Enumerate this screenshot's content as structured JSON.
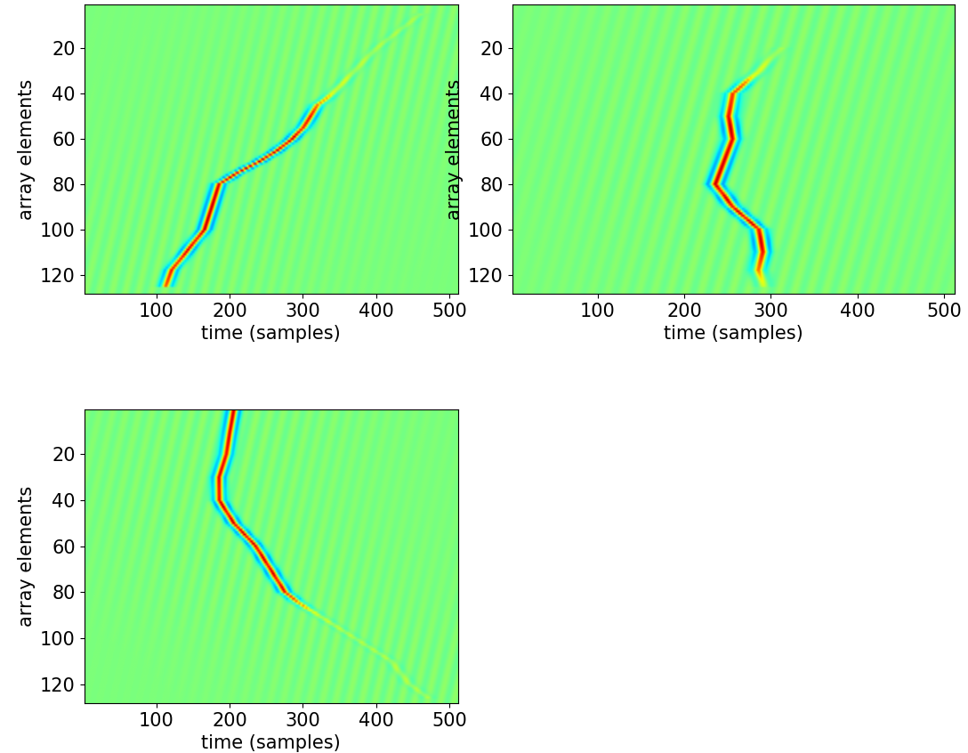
{
  "chart_data": [
    {
      "type": "image",
      "xlabel": "time (samples)",
      "ylabel": "array elements",
      "xlim": [
        1,
        512
      ],
      "ylim": [
        128,
        1
      ],
      "xticks": [
        100,
        200,
        300,
        400,
        500
      ],
      "yticks": [
        20,
        40,
        60,
        80,
        100,
        120
      ],
      "curve": {
        "element": [
          5,
          10,
          20,
          30,
          40,
          45,
          50,
          55,
          60,
          65,
          70,
          75,
          80,
          90,
          100,
          110,
          118,
          125
        ],
        "time": [
          460,
          440,
          400,
          370,
          340,
          320,
          310,
          300,
          285,
          265,
          240,
          210,
          185,
          175,
          165,
          140,
          120,
          112
        ],
        "amplitude": [
          0.1,
          0.1,
          0.12,
          0.15,
          0.3,
          0.7,
          0.9,
          0.95,
          1.0,
          1.0,
          1.0,
          1.0,
          1.0,
          1.0,
          1.0,
          0.95,
          0.9,
          0.7
        ]
      }
    },
    {
      "type": "image",
      "xlabel": "time (samples)",
      "ylabel": "array elements",
      "xlim": [
        1,
        512
      ],
      "ylim": [
        128,
        1
      ],
      "xticks": [
        100,
        200,
        300,
        400,
        500
      ],
      "yticks": [
        20,
        40,
        60,
        80,
        100,
        120
      ],
      "curve": {
        "element": [
          20,
          30,
          35,
          40,
          50,
          60,
          70,
          80,
          90,
          100,
          110,
          118,
          125
        ],
        "time": [
          310,
          285,
          270,
          255,
          250,
          255,
          245,
          235,
          255,
          285,
          290,
          285,
          290
        ],
        "amplitude": [
          0.1,
          0.25,
          0.6,
          0.9,
          1.0,
          1.0,
          1.0,
          1.0,
          1.0,
          1.0,
          0.95,
          0.7,
          0.2
        ]
      }
    },
    {
      "type": "image",
      "xlabel": "time (samples)",
      "ylabel": "array elements",
      "xlim": [
        1,
        512
      ],
      "ylim": [
        128,
        1
      ],
      "xticks": [
        100,
        200,
        300,
        400,
        500
      ],
      "yticks": [
        20,
        40,
        60,
        80,
        100,
        120
      ],
      "curve": {
        "element": [
          1,
          10,
          20,
          30,
          40,
          50,
          60,
          70,
          80,
          85,
          90,
          100,
          110,
          120,
          126
        ],
        "time": [
          205,
          200,
          195,
          185,
          185,
          205,
          235,
          255,
          275,
          295,
          320,
          370,
          420,
          445,
          470
        ],
        "amplitude": [
          1.0,
          1.0,
          1.0,
          1.0,
          1.0,
          1.0,
          1.0,
          1.0,
          0.95,
          0.6,
          0.2,
          0.12,
          0.12,
          0.12,
          0.1
        ]
      }
    }
  ]
}
